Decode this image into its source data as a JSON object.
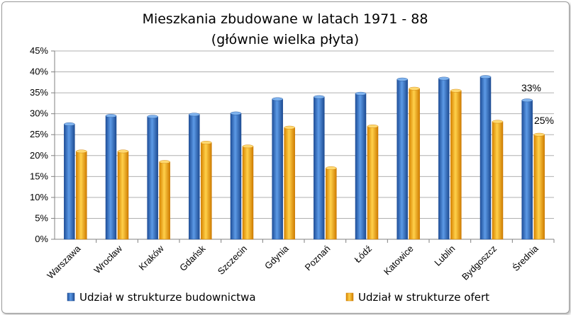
{
  "chart_data": {
    "type": "bar",
    "title_line1": "Mieszkania zbudowane w latach 1971 - 88",
    "title_line2": "(głównie wielka płyta)",
    "categories": [
      "Warszawa",
      "Wrocław",
      "Kraków",
      "Gdańsk",
      "Szczecin",
      "Gdynia",
      "Poznań",
      "Łódź",
      "Katowice",
      "Lublin",
      "Bydgoszcz",
      "Średnia"
    ],
    "series": [
      {
        "name": "Udział w strukturze budownictwa",
        "color": "#2f6fc4",
        "values": [
          27.5,
          29.5,
          29.3,
          29.8,
          30.1,
          33.5,
          34.0,
          34.8,
          38.2,
          38.4,
          38.8,
          33.2
        ]
      },
      {
        "name": "Udział w strukturze ofert",
        "color": "#f5a200",
        "values": [
          21.0,
          21.0,
          18.5,
          23.1,
          22.2,
          26.7,
          17.0,
          27.0,
          36.0,
          35.5,
          28.1,
          25.0
        ]
      }
    ],
    "ylim": [
      0,
      45
    ],
    "yticks": [
      "0%",
      "5%",
      "10%",
      "15%",
      "20%",
      "25%",
      "30%",
      "35%",
      "40%",
      "45%"
    ],
    "grid": true,
    "legend_position": "bottom",
    "annotations": [
      "33%",
      "25%"
    ]
  }
}
